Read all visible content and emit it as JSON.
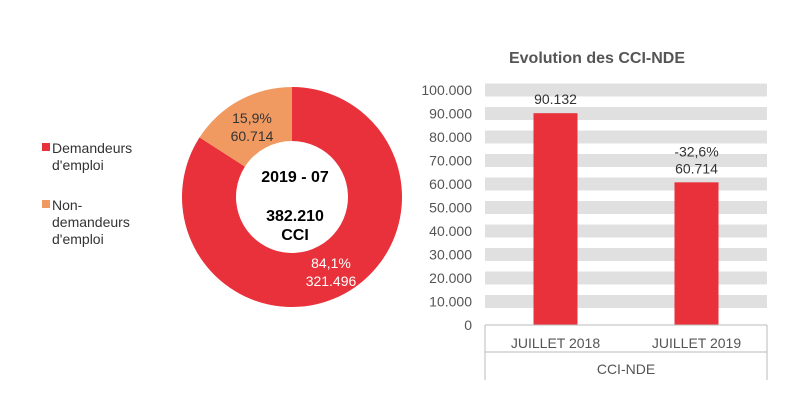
{
  "chart_data": [
    {
      "type": "pie",
      "variant": "donut",
      "center_title": "2019 - 07",
      "center_total": "382.210",
      "center_unit": "CCI",
      "legend_placement": "left",
      "slices": [
        {
          "name": "Demandeurs d'emploi",
          "legend_lines": [
            "Demandeurs",
            "d'emploi"
          ],
          "value": 321496,
          "value_label": "321.496",
          "percent_label": "84,1%",
          "color": "#E8313A",
          "label_color": "#ffffff"
        },
        {
          "name": "Non-demandeurs d'emploi",
          "legend_lines": [
            "Non-",
            "demandeurs",
            "d'emploi"
          ],
          "value": 60714,
          "value_label": "60.714",
          "percent_label": "15,9%",
          "color": "#F09A62",
          "label_color": "#333333"
        }
      ]
    },
    {
      "type": "bar",
      "title": "Evolution des CCI-NDE",
      "categories": [
        "JUILLET 2018",
        "JUILLET 2019"
      ],
      "group_label": "CCI-NDE",
      "values": [
        90132,
        60714
      ],
      "data_labels": [
        [
          "90.132"
        ],
        [
          "-32,6%",
          "60.714"
        ]
      ],
      "ylim": [
        0,
        100000
      ],
      "yticks": [
        "0",
        "10.000",
        "20.000",
        "30.000",
        "40.000",
        "50.000",
        "60.000",
        "70.000",
        "80.000",
        "90.000",
        "100.000"
      ],
      "grid": true,
      "bar_color": "#E8313A",
      "grid_color": "#E0E0E0"
    }
  ]
}
